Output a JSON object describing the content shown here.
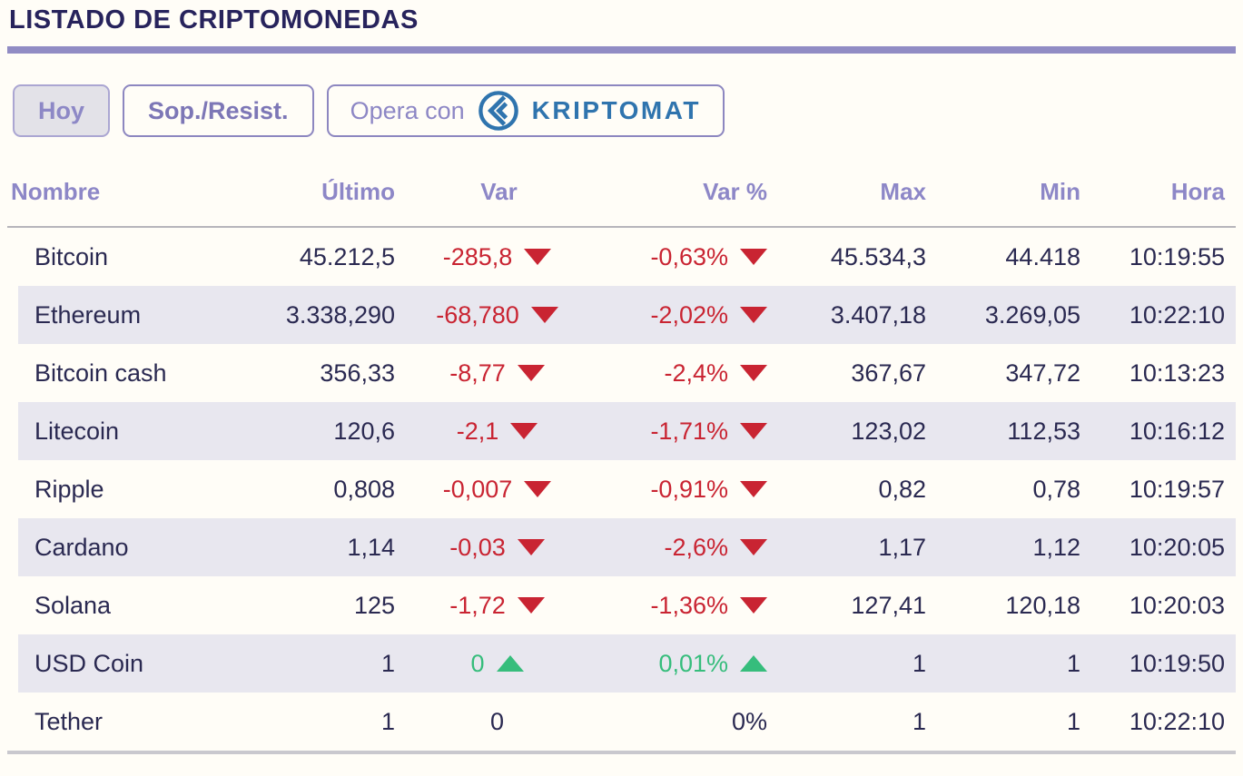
{
  "page": {
    "title": "LISTADO DE CRIPTOMONEDAS"
  },
  "toolbar": {
    "today_label": "Hoy",
    "support_resist_label": "Sop./Resist.",
    "opera_label": "Opera con",
    "brand": "KRIPTOMAT"
  },
  "colors": {
    "accent_purple": "#8d87c7",
    "title_navy": "#27235c",
    "text_navy": "#2a2951",
    "negative_red": "#c92432",
    "positive_green": "#36bd7c",
    "brand_blue": "#2f74ae",
    "divider_purple": "#918cc4",
    "alt_row_bg": "#e8e7ef"
  },
  "chart_data": {
    "type": "table",
    "title": "LISTADO DE CRIPTOMONEDAS",
    "columns": [
      "Nombre",
      "Último",
      "Var",
      "Var %",
      "Max",
      "Min",
      "Hora"
    ],
    "rows": [
      {
        "name": "Bitcoin",
        "last": "45.212,5",
        "var": "-285,8",
        "var_dir": "down",
        "var_pct": "-0,63%",
        "pct_dir": "down",
        "max": "45.534,3",
        "min": "44.418",
        "time": "10:19:55"
      },
      {
        "name": "Ethereum",
        "last": "3.338,290",
        "var": "-68,780",
        "var_dir": "down",
        "var_pct": "-2,02%",
        "pct_dir": "down",
        "max": "3.407,18",
        "min": "3.269,05",
        "time": "10:22:10"
      },
      {
        "name": "Bitcoin cash",
        "last": "356,33",
        "var": "-8,77",
        "var_dir": "down",
        "var_pct": "-2,4%",
        "pct_dir": "down",
        "max": "367,67",
        "min": "347,72",
        "time": "10:13:23"
      },
      {
        "name": "Litecoin",
        "last": "120,6",
        "var": "-2,1",
        "var_dir": "down",
        "var_pct": "-1,71%",
        "pct_dir": "down",
        "max": "123,02",
        "min": "112,53",
        "time": "10:16:12"
      },
      {
        "name": "Ripple",
        "last": "0,808",
        "var": "-0,007",
        "var_dir": "down",
        "var_pct": "-0,91%",
        "pct_dir": "down",
        "max": "0,82",
        "min": "0,78",
        "time": "10:19:57"
      },
      {
        "name": "Cardano",
        "last": "1,14",
        "var": "-0,03",
        "var_dir": "down",
        "var_pct": "-2,6%",
        "pct_dir": "down",
        "max": "1,17",
        "min": "1,12",
        "time": "10:20:05"
      },
      {
        "name": "Solana",
        "last": "125",
        "var": "-1,72",
        "var_dir": "down",
        "var_pct": "-1,36%",
        "pct_dir": "down",
        "max": "127,41",
        "min": "120,18",
        "time": "10:20:03"
      },
      {
        "name": "USD Coin",
        "last": "1",
        "var": "0",
        "var_dir": "up",
        "var_pct": "0,01%",
        "pct_dir": "up",
        "max": "1",
        "min": "1",
        "time": "10:19:50"
      },
      {
        "name": "Tether",
        "last": "1",
        "var": "0",
        "var_dir": "none",
        "var_pct": "0%",
        "pct_dir": "none",
        "max": "1",
        "min": "1",
        "time": "10:22:10"
      }
    ]
  }
}
